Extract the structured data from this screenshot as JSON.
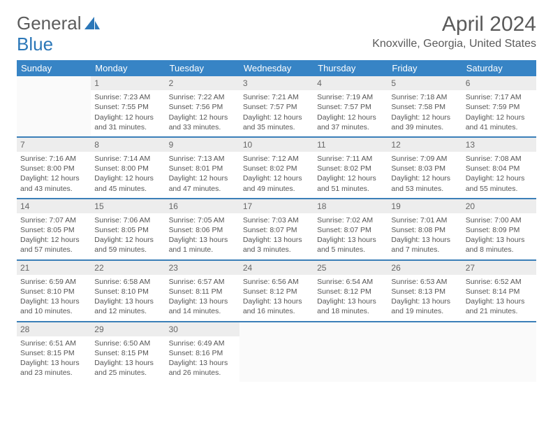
{
  "brand": {
    "part1": "General",
    "part2": "Blue"
  },
  "title": "April 2024",
  "location": "Knoxville, Georgia, United States",
  "colors": {
    "header_bg": "#3784c5",
    "header_text": "#ffffff",
    "border": "#3b7fb8",
    "daynum_bg": "#ededed",
    "text": "#555555"
  },
  "day_labels": [
    "Sunday",
    "Monday",
    "Tuesday",
    "Wednesday",
    "Thursday",
    "Friday",
    "Saturday"
  ],
  "weeks": [
    [
      {
        "n": "",
        "sr": "",
        "ss": "",
        "dl1": "",
        "dl2": ""
      },
      {
        "n": "1",
        "sr": "Sunrise: 7:23 AM",
        "ss": "Sunset: 7:55 PM",
        "dl1": "Daylight: 12 hours",
        "dl2": "and 31 minutes."
      },
      {
        "n": "2",
        "sr": "Sunrise: 7:22 AM",
        "ss": "Sunset: 7:56 PM",
        "dl1": "Daylight: 12 hours",
        "dl2": "and 33 minutes."
      },
      {
        "n": "3",
        "sr": "Sunrise: 7:21 AM",
        "ss": "Sunset: 7:57 PM",
        "dl1": "Daylight: 12 hours",
        "dl2": "and 35 minutes."
      },
      {
        "n": "4",
        "sr": "Sunrise: 7:19 AM",
        "ss": "Sunset: 7:57 PM",
        "dl1": "Daylight: 12 hours",
        "dl2": "and 37 minutes."
      },
      {
        "n": "5",
        "sr": "Sunrise: 7:18 AM",
        "ss": "Sunset: 7:58 PM",
        "dl1": "Daylight: 12 hours",
        "dl2": "and 39 minutes."
      },
      {
        "n": "6",
        "sr": "Sunrise: 7:17 AM",
        "ss": "Sunset: 7:59 PM",
        "dl1": "Daylight: 12 hours",
        "dl2": "and 41 minutes."
      }
    ],
    [
      {
        "n": "7",
        "sr": "Sunrise: 7:16 AM",
        "ss": "Sunset: 8:00 PM",
        "dl1": "Daylight: 12 hours",
        "dl2": "and 43 minutes."
      },
      {
        "n": "8",
        "sr": "Sunrise: 7:14 AM",
        "ss": "Sunset: 8:00 PM",
        "dl1": "Daylight: 12 hours",
        "dl2": "and 45 minutes."
      },
      {
        "n": "9",
        "sr": "Sunrise: 7:13 AM",
        "ss": "Sunset: 8:01 PM",
        "dl1": "Daylight: 12 hours",
        "dl2": "and 47 minutes."
      },
      {
        "n": "10",
        "sr": "Sunrise: 7:12 AM",
        "ss": "Sunset: 8:02 PM",
        "dl1": "Daylight: 12 hours",
        "dl2": "and 49 minutes."
      },
      {
        "n": "11",
        "sr": "Sunrise: 7:11 AM",
        "ss": "Sunset: 8:02 PM",
        "dl1": "Daylight: 12 hours",
        "dl2": "and 51 minutes."
      },
      {
        "n": "12",
        "sr": "Sunrise: 7:09 AM",
        "ss": "Sunset: 8:03 PM",
        "dl1": "Daylight: 12 hours",
        "dl2": "and 53 minutes."
      },
      {
        "n": "13",
        "sr": "Sunrise: 7:08 AM",
        "ss": "Sunset: 8:04 PM",
        "dl1": "Daylight: 12 hours",
        "dl2": "and 55 minutes."
      }
    ],
    [
      {
        "n": "14",
        "sr": "Sunrise: 7:07 AM",
        "ss": "Sunset: 8:05 PM",
        "dl1": "Daylight: 12 hours",
        "dl2": "and 57 minutes."
      },
      {
        "n": "15",
        "sr": "Sunrise: 7:06 AM",
        "ss": "Sunset: 8:05 PM",
        "dl1": "Daylight: 12 hours",
        "dl2": "and 59 minutes."
      },
      {
        "n": "16",
        "sr": "Sunrise: 7:05 AM",
        "ss": "Sunset: 8:06 PM",
        "dl1": "Daylight: 13 hours",
        "dl2": "and 1 minute."
      },
      {
        "n": "17",
        "sr": "Sunrise: 7:03 AM",
        "ss": "Sunset: 8:07 PM",
        "dl1": "Daylight: 13 hours",
        "dl2": "and 3 minutes."
      },
      {
        "n": "18",
        "sr": "Sunrise: 7:02 AM",
        "ss": "Sunset: 8:07 PM",
        "dl1": "Daylight: 13 hours",
        "dl2": "and 5 minutes."
      },
      {
        "n": "19",
        "sr": "Sunrise: 7:01 AM",
        "ss": "Sunset: 8:08 PM",
        "dl1": "Daylight: 13 hours",
        "dl2": "and 7 minutes."
      },
      {
        "n": "20",
        "sr": "Sunrise: 7:00 AM",
        "ss": "Sunset: 8:09 PM",
        "dl1": "Daylight: 13 hours",
        "dl2": "and 8 minutes."
      }
    ],
    [
      {
        "n": "21",
        "sr": "Sunrise: 6:59 AM",
        "ss": "Sunset: 8:10 PM",
        "dl1": "Daylight: 13 hours",
        "dl2": "and 10 minutes."
      },
      {
        "n": "22",
        "sr": "Sunrise: 6:58 AM",
        "ss": "Sunset: 8:10 PM",
        "dl1": "Daylight: 13 hours",
        "dl2": "and 12 minutes."
      },
      {
        "n": "23",
        "sr": "Sunrise: 6:57 AM",
        "ss": "Sunset: 8:11 PM",
        "dl1": "Daylight: 13 hours",
        "dl2": "and 14 minutes."
      },
      {
        "n": "24",
        "sr": "Sunrise: 6:56 AM",
        "ss": "Sunset: 8:12 PM",
        "dl1": "Daylight: 13 hours",
        "dl2": "and 16 minutes."
      },
      {
        "n": "25",
        "sr": "Sunrise: 6:54 AM",
        "ss": "Sunset: 8:12 PM",
        "dl1": "Daylight: 13 hours",
        "dl2": "and 18 minutes."
      },
      {
        "n": "26",
        "sr": "Sunrise: 6:53 AM",
        "ss": "Sunset: 8:13 PM",
        "dl1": "Daylight: 13 hours",
        "dl2": "and 19 minutes."
      },
      {
        "n": "27",
        "sr": "Sunrise: 6:52 AM",
        "ss": "Sunset: 8:14 PM",
        "dl1": "Daylight: 13 hours",
        "dl2": "and 21 minutes."
      }
    ],
    [
      {
        "n": "28",
        "sr": "Sunrise: 6:51 AM",
        "ss": "Sunset: 8:15 PM",
        "dl1": "Daylight: 13 hours",
        "dl2": "and 23 minutes."
      },
      {
        "n": "29",
        "sr": "Sunrise: 6:50 AM",
        "ss": "Sunset: 8:15 PM",
        "dl1": "Daylight: 13 hours",
        "dl2": "and 25 minutes."
      },
      {
        "n": "30",
        "sr": "Sunrise: 6:49 AM",
        "ss": "Sunset: 8:16 PM",
        "dl1": "Daylight: 13 hours",
        "dl2": "and 26 minutes."
      },
      {
        "n": "",
        "sr": "",
        "ss": "",
        "dl1": "",
        "dl2": ""
      },
      {
        "n": "",
        "sr": "",
        "ss": "",
        "dl1": "",
        "dl2": ""
      },
      {
        "n": "",
        "sr": "",
        "ss": "",
        "dl1": "",
        "dl2": ""
      },
      {
        "n": "",
        "sr": "",
        "ss": "",
        "dl1": "",
        "dl2": ""
      }
    ]
  ]
}
